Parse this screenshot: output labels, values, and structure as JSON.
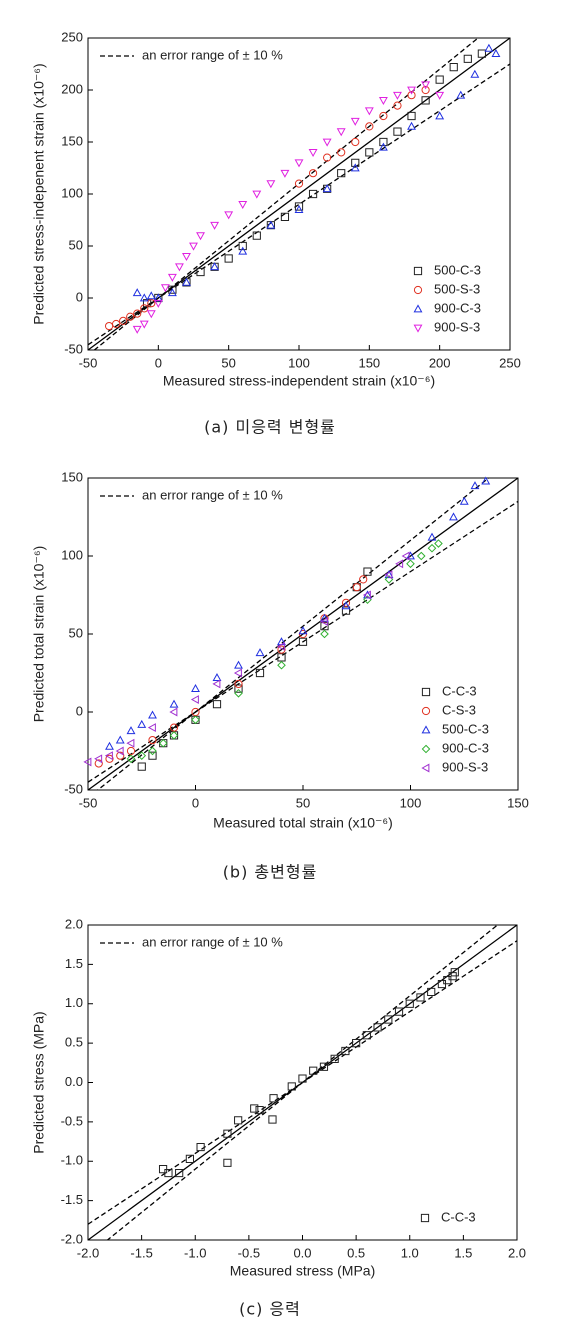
{
  "chart_data": [
    {
      "type": "scatter",
      "xlabel": "Measured stress-independent strain (x10⁻⁶)",
      "ylabel": "Predicted stress-indepenent strain (x10⁻⁶)",
      "caption": "(a) 미응력 변형률",
      "error_label": "an error range of ± 10 %",
      "error_range": 10,
      "xlim": [
        -50,
        250
      ],
      "ylim": [
        -50,
        250
      ],
      "xticks": [
        -50,
        0,
        50,
        100,
        150,
        200,
        250
      ],
      "yticks": [
        -50,
        0,
        50,
        100,
        150,
        200,
        250
      ],
      "legend": "lower right",
      "series": [
        {
          "name": "500-C-3",
          "color": "#222222",
          "marker": "square",
          "x": [
            -8,
            0,
            10,
            20,
            30,
            40,
            50,
            60,
            70,
            80,
            90,
            100,
            110,
            120,
            130,
            140,
            150,
            160,
            170,
            180,
            190,
            200,
            210,
            220,
            230
          ],
          "y": [
            -5,
            0,
            8,
            15,
            25,
            30,
            38,
            50,
            60,
            70,
            78,
            88,
            100,
            105,
            120,
            130,
            140,
            150,
            160,
            175,
            190,
            210,
            222,
            230,
            235
          ]
        },
        {
          "name": "500-S-3",
          "color": "#e03020",
          "marker": "circle",
          "x": [
            -35,
            -30,
            -25,
            -20,
            -15,
            -10,
            -5,
            100,
            110,
            120,
            130,
            140,
            150,
            160,
            170,
            180,
            190
          ],
          "y": [
            -27,
            -25,
            -22,
            -18,
            -15,
            -10,
            -5,
            110,
            120,
            135,
            140,
            150,
            165,
            175,
            185,
            195,
            200
          ]
        },
        {
          "name": "900-C-3",
          "color": "#2030e0",
          "marker": "triangle",
          "x": [
            -15,
            -10,
            -5,
            0,
            10,
            20,
            40,
            60,
            80,
            100,
            120,
            140,
            160,
            180,
            200,
            215,
            225,
            235,
            240
          ],
          "y": [
            5,
            0,
            2,
            0,
            5,
            15,
            30,
            45,
            70,
            85,
            105,
            125,
            145,
            165,
            175,
            195,
            215,
            240,
            235
          ]
        },
        {
          "name": "900-S-3",
          "color": "#e020e0",
          "marker": "triangle-down",
          "x": [
            -15,
            -10,
            -5,
            0,
            5,
            10,
            15,
            20,
            25,
            30,
            40,
            50,
            60,
            70,
            80,
            90,
            100,
            110,
            120,
            130,
            140,
            150,
            160,
            170,
            180,
            190,
            200
          ],
          "y": [
            -30,
            -25,
            -15,
            -5,
            10,
            20,
            30,
            40,
            50,
            60,
            70,
            80,
            90,
            100,
            110,
            120,
            130,
            140,
            150,
            160,
            170,
            180,
            190,
            195,
            200,
            205,
            195
          ]
        }
      ]
    },
    {
      "type": "scatter",
      "xlabel": "Measured total strain (x10⁻⁶)",
      "ylabel": "Predicted total strain (x10⁻⁶)",
      "caption": "(b) 총변형률",
      "error_label": "an error range of ± 10 %",
      "error_range": 10,
      "xlim": [
        -50,
        150
      ],
      "ylim": [
        -50,
        150
      ],
      "xticks": [
        -50,
        0,
        50,
        100,
        150
      ],
      "yticks": [
        -50,
        0,
        50,
        100,
        150
      ],
      "legend": "lower right",
      "series": [
        {
          "name": "C-C-3",
          "color": "#222222",
          "marker": "square",
          "x": [
            -25,
            -20,
            -15,
            -10,
            0,
            10,
            20,
            30,
            40,
            50,
            60,
            70,
            75,
            80
          ],
          "y": [
            -35,
            -28,
            -20,
            -15,
            -5,
            5,
            15,
            25,
            35,
            45,
            55,
            65,
            80,
            90
          ]
        },
        {
          "name": "C-S-3",
          "color": "#e03020",
          "marker": "circle",
          "x": [
            -45,
            -40,
            -35,
            -30,
            -20,
            -10,
            0,
            20,
            40,
            50,
            60,
            70,
            75,
            78
          ],
          "y": [
            -33,
            -30,
            -28,
            -25,
            -18,
            -10,
            0,
            18,
            40,
            50,
            60,
            70,
            80,
            85
          ]
        },
        {
          "name": "500-C-3",
          "color": "#2030e0",
          "marker": "triangle",
          "x": [
            -40,
            -35,
            -30,
            -25,
            -20,
            -10,
            0,
            10,
            20,
            30,
            40,
            50,
            60,
            70,
            80,
            90,
            100,
            110,
            120,
            125,
            130,
            135
          ],
          "y": [
            -22,
            -18,
            -12,
            -8,
            -2,
            5,
            15,
            22,
            30,
            38,
            45,
            52,
            60,
            68,
            75,
            88,
            100,
            112,
            125,
            135,
            145,
            148
          ]
        },
        {
          "name": "900-C-3",
          "color": "#30b030",
          "marker": "diamond",
          "x": [
            -30,
            -25,
            -20,
            -15,
            -10,
            0,
            20,
            40,
            60,
            80,
            90,
            100,
            105,
            110,
            113
          ],
          "y": [
            -30,
            -28,
            -25,
            -20,
            -15,
            -5,
            12,
            30,
            50,
            72,
            85,
            95,
            100,
            105,
            108
          ]
        },
        {
          "name": "900-S-3",
          "color": "#a030d0",
          "marker": "triangle-left",
          "x": [
            -50,
            -45,
            -40,
            -35,
            -30,
            -20,
            -10,
            0,
            10,
            20,
            40,
            60,
            80,
            90,
            95,
            98
          ],
          "y": [
            -32,
            -30,
            -28,
            -25,
            -20,
            -10,
            0,
            8,
            18,
            25,
            42,
            58,
            75,
            88,
            95,
            100
          ]
        }
      ]
    },
    {
      "type": "scatter",
      "xlabel": "Measured stress (MPa)",
      "ylabel": "Predicted stress (MPa)",
      "caption": "(c) 응력",
      "error_label": "an error range of ± 10 %",
      "error_range": 10,
      "xlim": [
        -2,
        2
      ],
      "ylim": [
        -2,
        2
      ],
      "xticks": [
        {
          "value": -2,
          "label": "-2.0"
        },
        -1.5,
        {
          "value": -1,
          "label": "-1.0"
        },
        -0.5,
        {
          "value": 0,
          "label": "0.0"
        },
        0.5,
        {
          "value": 1,
          "label": "1.0"
        },
        1.5,
        {
          "value": 2,
          "label": "2.0"
        }
      ],
      "yticks": [
        {
          "value": -2,
          "label": "-2.0"
        },
        -1.5,
        {
          "value": -1,
          "label": "-1.0"
        },
        -0.5,
        {
          "value": 0,
          "label": "0.0"
        },
        0.5,
        {
          "value": 1,
          "label": "1.0"
        },
        1.5,
        {
          "value": 2,
          "label": "2.0"
        }
      ],
      "legend": "lower right",
      "series": [
        {
          "name": "C-C-3",
          "color": "#222222",
          "marker": "square",
          "x": [
            -1.3,
            -1.25,
            -1.15,
            -1.05,
            -0.95,
            -0.7,
            -0.7,
            -0.6,
            -0.45,
            -0.4,
            -0.28,
            -0.27,
            -0.1,
            0,
            0.1,
            0.2,
            0.3,
            0.4,
            0.5,
            0.6,
            0.7,
            0.8,
            0.9,
            1,
            1.1,
            1.2,
            1.3,
            1.35,
            1.4,
            1.42
          ],
          "y": [
            -1.1,
            -1.15,
            -1.15,
            -0.97,
            -0.82,
            -0.65,
            -1.02,
            -0.48,
            -0.33,
            -0.35,
            -0.47,
            -0.2,
            -0.05,
            0.05,
            0.15,
            0.2,
            0.3,
            0.4,
            0.5,
            0.6,
            0.7,
            0.8,
            0.9,
            1,
            1.08,
            1.15,
            1.25,
            1.3,
            1.35,
            1.4
          ]
        }
      ]
    }
  ]
}
